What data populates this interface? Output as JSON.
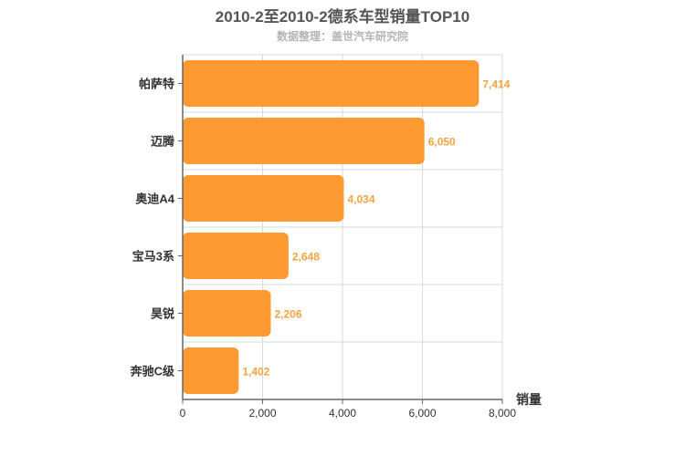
{
  "chart_data": {
    "type": "bar",
    "orientation": "horizontal",
    "title": "2010-2至2010-2德系车型销量TOP10",
    "subtitle": "数据整理：盖世汽车研究院",
    "categories": [
      "帕萨特",
      "迈腾",
      "奥迪A4",
      "宝马3系",
      "昊锐",
      "奔驰C级"
    ],
    "values": [
      7414,
      6050,
      4034,
      2648,
      2206,
      1402
    ],
    "value_labels": [
      "7,414",
      "6,050",
      "4,034",
      "2,648",
      "2,206",
      "1,402"
    ],
    "xlabel": "销量",
    "ylabel": "",
    "xlim": [
      0,
      8000
    ],
    "xticks": [
      0,
      2000,
      4000,
      6000,
      8000
    ],
    "xtick_labels": [
      "0",
      "2,000",
      "4,000",
      "6,000",
      "8,000"
    ],
    "grid": true,
    "legend": "none",
    "bar_color": "#ff9a33",
    "value_label_color": "#f5a33e"
  }
}
